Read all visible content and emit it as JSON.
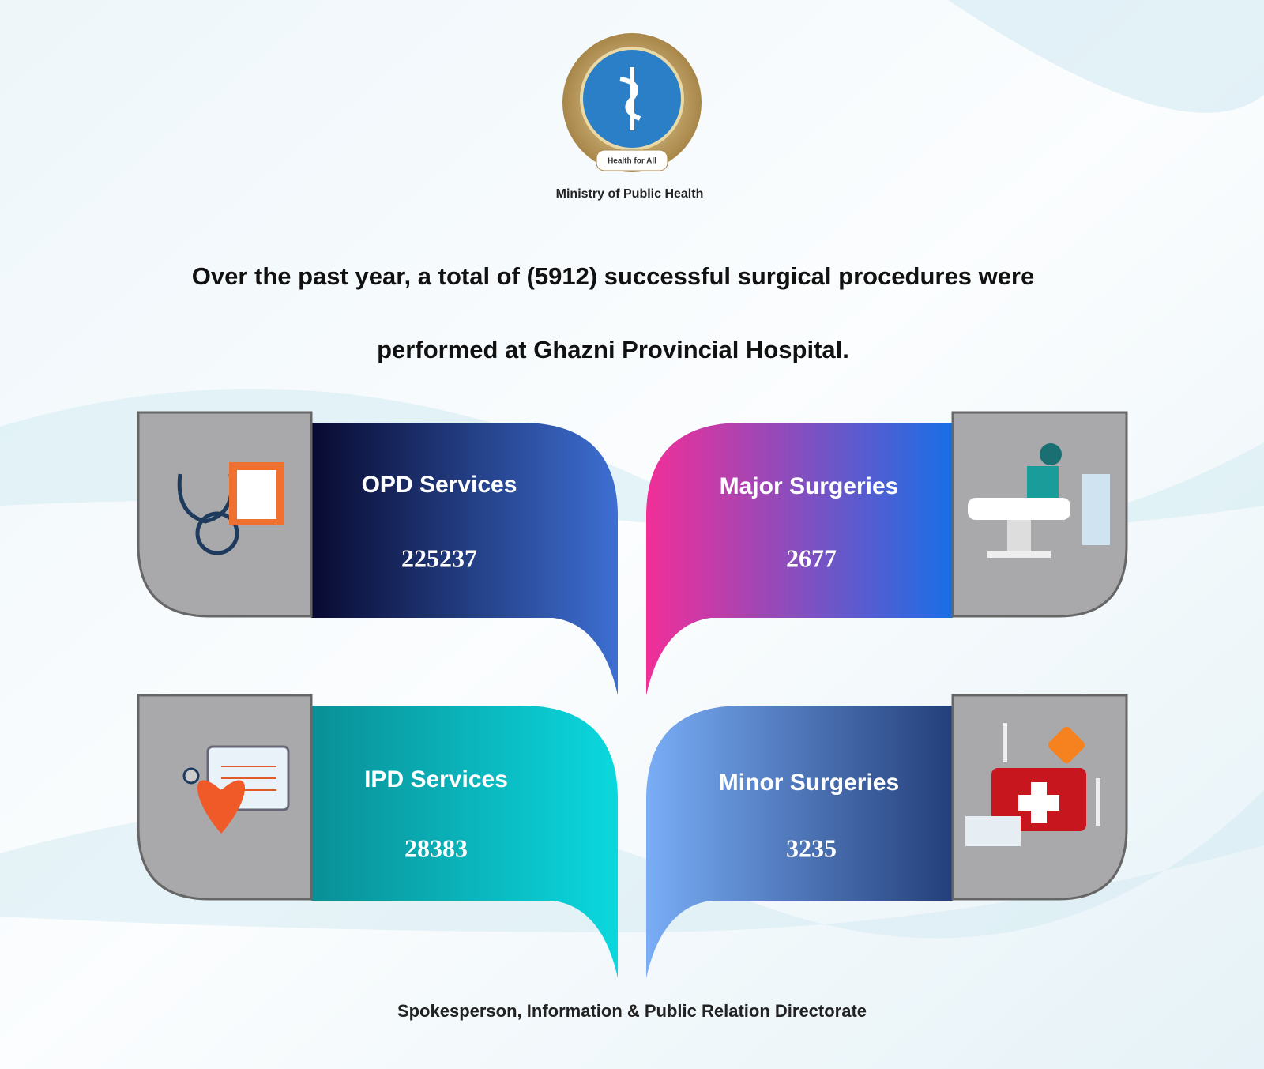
{
  "header": {
    "org": "Ministry of Public Health",
    "motto": "Health for All"
  },
  "headline": {
    "lines": [
      "Over the past year, a total of (5912) successful surgical procedures were",
      "performed at Ghazni Provincial Hospital."
    ]
  },
  "cards": [
    {
      "label": "OPD Services",
      "value": "225237"
    },
    {
      "label": "Major Surgeries",
      "value": "2677"
    },
    {
      "label": "IPD Services",
      "value": "28383"
    },
    {
      "label": "Minor Surgeries",
      "value": "3235"
    }
  ],
  "footer": "Spokesperson, Information & Public Relation Directorate"
}
